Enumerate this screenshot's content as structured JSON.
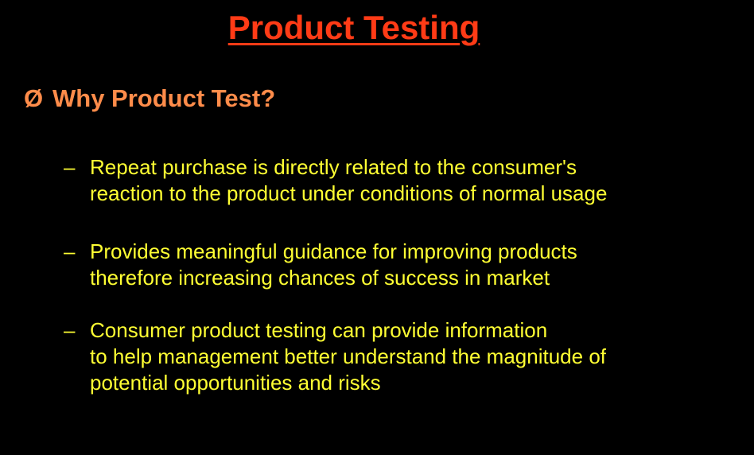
{
  "slide": {
    "title": "Product Testing",
    "heading": {
      "marker": "Ø",
      "text": "Why Product Test?"
    },
    "bullets": [
      {
        "dash": "–",
        "lines": [
          "Repeat purchase is directly related to the consumer's",
          "reaction to the product under conditions of normal usage"
        ]
      },
      {
        "dash": "–",
        "lines": [
          "Provides meaningful guidance for improving products",
          "therefore increasing chances of success in market"
        ]
      },
      {
        "dash": "–",
        "lines": [
          "Consumer product testing can provide information",
          "to help management better understand the magnitude of",
          "potential opportunities and risks"
        ]
      }
    ],
    "colors": {
      "background": "#000000",
      "title": "#ff3b16",
      "heading": "#ff8c4a",
      "body": "#ffff33"
    }
  }
}
